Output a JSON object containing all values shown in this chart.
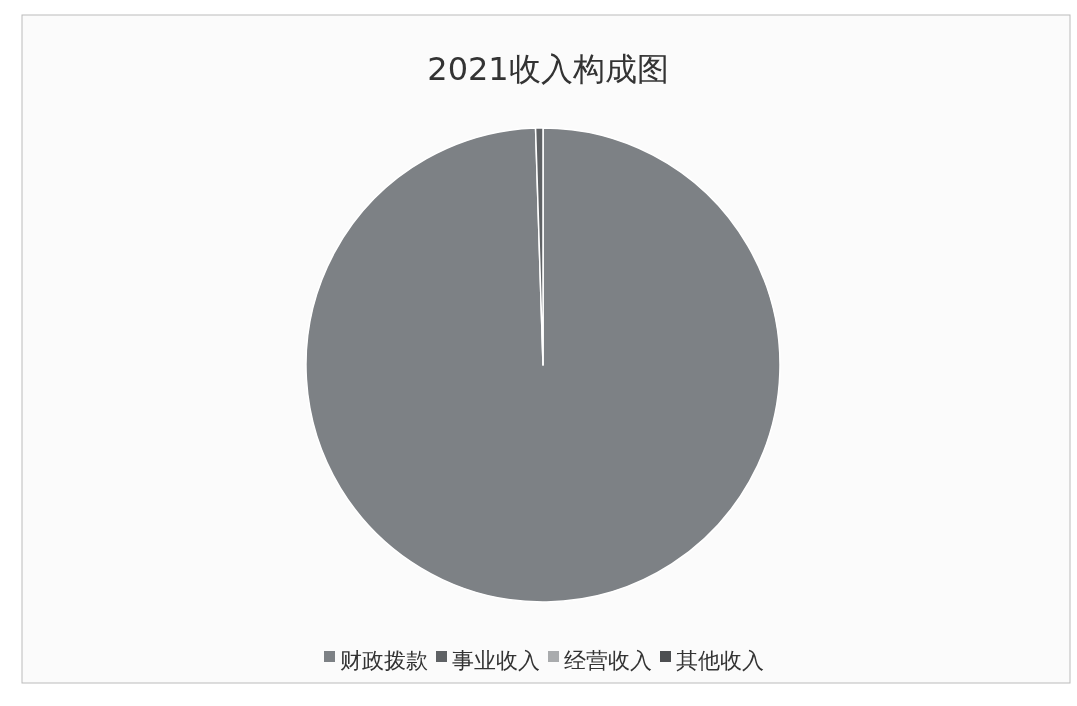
{
  "chart_data": {
    "type": "pie",
    "title": "2021收入构成图",
    "categories": [
      "财政拨款",
      "事业收入",
      "经营收入",
      "其他收入"
    ],
    "values": [
      99.5,
      0.5,
      0,
      0
    ],
    "colors": [
      "#7d8185",
      "#5f6265",
      "#a9abad",
      "#4d4f51"
    ],
    "legend": "bottom"
  }
}
